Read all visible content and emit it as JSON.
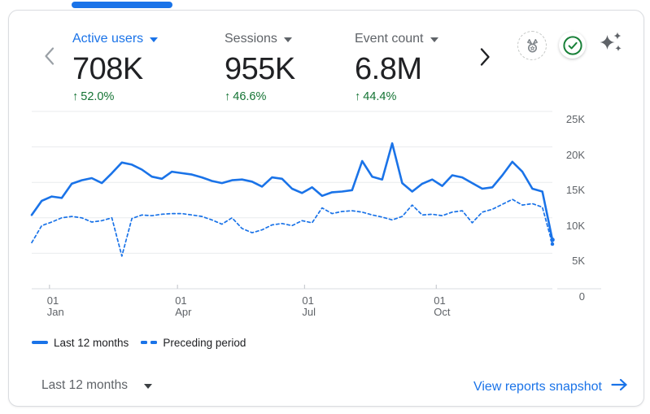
{
  "colors": {
    "accent_blue": "#1a73e8",
    "positive_green": "#137333",
    "check_green": "#188038",
    "text_primary": "#202124",
    "text_secondary": "#5f6368",
    "gridline": "#e9ebee",
    "axis_line": "#dadce0"
  },
  "icons": {
    "prev": "chevron-left",
    "next": "chevron-right",
    "badge": "medal-badge",
    "data_quality": "check-circle",
    "insights": "sparkles",
    "dropdown_caret": "caret-down",
    "link_arrow": "arrow-right"
  },
  "card": {
    "metrics": [
      {
        "label": "Active users",
        "value": "708K",
        "arrow": "↑",
        "delta": "52.0%",
        "active": true
      },
      {
        "label": "Sessions",
        "value": "955K",
        "arrow": "↑",
        "delta": "46.6%",
        "active": false
      },
      {
        "label": "Event count",
        "value": "6.8M",
        "arrow": "↑",
        "delta": "44.4%",
        "active": false
      }
    ],
    "date_range_dropdown": {
      "label": "Last 12 months"
    },
    "footer_link": {
      "label": "View reports snapshot"
    }
  },
  "chart_data": {
    "type": "line",
    "metric_shown": "Active users",
    "granularity": "weekly",
    "unit": "thousands of users",
    "grid": true,
    "legend_position": "bottom-left",
    "ymax_k": 25,
    "yticks_k": [
      0,
      5,
      10,
      15,
      20,
      25
    ],
    "ytick_labels": [
      "0",
      "5K",
      "10K",
      "15K",
      "20K",
      "25K"
    ],
    "xticks": [
      {
        "day": "01",
        "month": "Jan",
        "pos": 0.034
      },
      {
        "day": "01",
        "month": "Apr",
        "pos": 0.28
      },
      {
        "day": "01",
        "month": "Jul",
        "pos": 0.524
      },
      {
        "day": "01",
        "month": "Oct",
        "pos": 0.777
      }
    ],
    "series": [
      {
        "name": "Last 12 months",
        "style": "solid",
        "color": "#1a73e8",
        "values_k": [
          10.4,
          12.4,
          13.0,
          12.8,
          14.8,
          15.3,
          15.6,
          14.9,
          16.3,
          17.8,
          17.5,
          16.8,
          15.8,
          15.5,
          16.5,
          16.3,
          16.1,
          15.7,
          15.2,
          14.9,
          15.3,
          15.4,
          15.1,
          14.4,
          15.7,
          15.5,
          14.1,
          13.5,
          14.3,
          13.1,
          13.6,
          13.7,
          13.9,
          18.0,
          15.8,
          15.4,
          20.5,
          14.9,
          13.7,
          14.8,
          15.4,
          14.5,
          16.0,
          15.7,
          14.9,
          14.1,
          14.3,
          16.0,
          17.9,
          16.5,
          14.1,
          13.7,
          6.9
        ]
      },
      {
        "name": "Preceding period",
        "style": "dashed",
        "color": "#1a73e8",
        "values_k": [
          6.5,
          8.9,
          9.4,
          10.0,
          10.2,
          10.0,
          9.4,
          9.6,
          10.0,
          4.6,
          9.9,
          10.4,
          10.3,
          10.5,
          10.6,
          10.6,
          10.4,
          10.2,
          9.7,
          9.1,
          10.0,
          8.5,
          7.9,
          8.3,
          9.0,
          9.2,
          8.9,
          9.6,
          9.3,
          11.4,
          10.6,
          10.9,
          11.0,
          10.8,
          10.4,
          10.1,
          9.7,
          10.2,
          11.8,
          10.4,
          10.5,
          10.3,
          10.8,
          11.0,
          9.3,
          10.8,
          11.2,
          11.9,
          12.6,
          11.8,
          12.0,
          11.5,
          6.3
        ]
      }
    ]
  }
}
